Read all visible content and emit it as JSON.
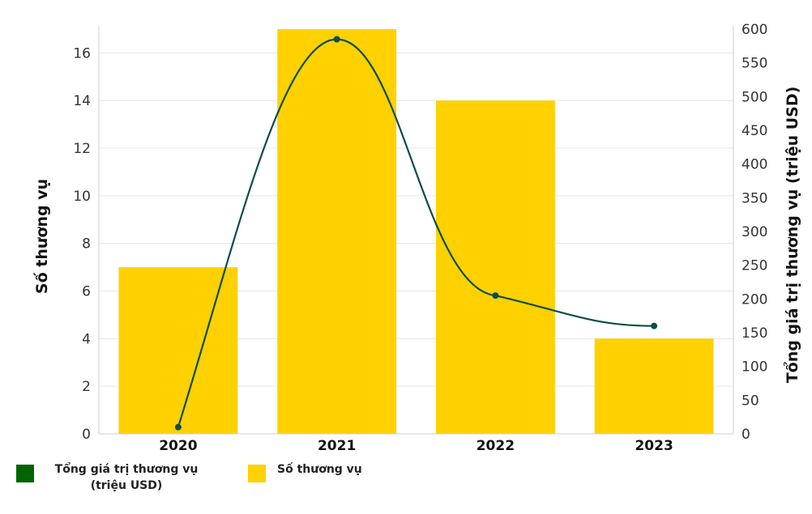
{
  "chart_data": {
    "type": "bar",
    "categories": [
      "2020",
      "2021",
      "2022",
      "2023"
    ],
    "series": [
      {
        "name": "Số thương vụ",
        "type": "bar",
        "axis": "left",
        "values": [
          7,
          17,
          14,
          4
        ]
      },
      {
        "name": "Tổng giá trị thương vụ (triệu USD)",
        "type": "line",
        "axis": "right",
        "values": [
          10,
          585,
          205,
          160
        ]
      }
    ],
    "left_axis": {
      "label": "Số thương vụ",
      "ylim": [
        0,
        17
      ],
      "ticks": [
        0,
        2,
        4,
        6,
        8,
        10,
        12,
        14,
        16
      ]
    },
    "right_axis": {
      "label": "Tổng giá trị thương vụ (triệu USD)",
      "ylim": [
        0,
        600
      ],
      "ticks": [
        0,
        50,
        100,
        150,
        200,
        250,
        300,
        350,
        400,
        450,
        500,
        550,
        600
      ]
    },
    "grid": true,
    "legend_position": "bottom-left",
    "colors": {
      "bar": "#FFD100",
      "line": "#0B4D4A",
      "line_legend": "#006400",
      "grid": "#e6e6e6"
    }
  },
  "legend": {
    "line_label_1": "Tổng giá trị thương vụ",
    "line_label_2": "(triệu USD)",
    "bar_label": "Số thương vụ"
  }
}
